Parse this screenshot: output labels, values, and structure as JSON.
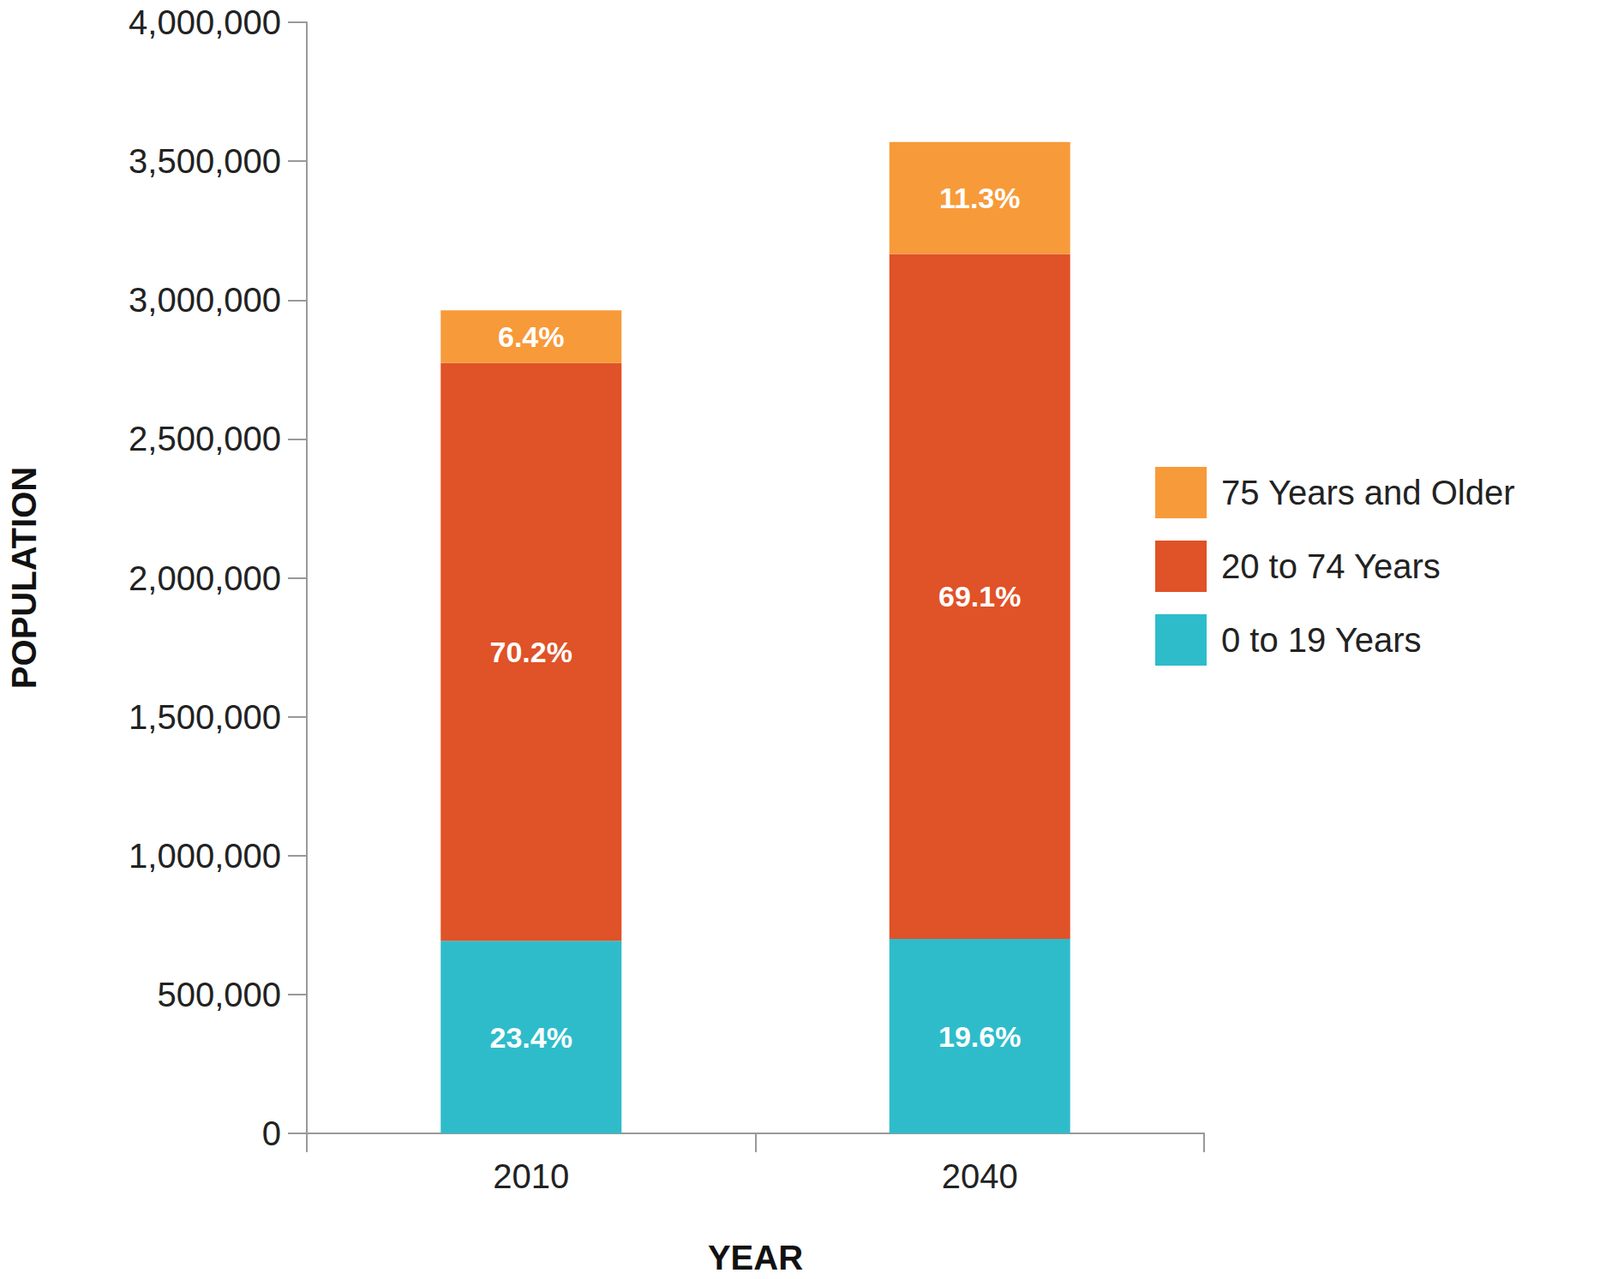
{
  "chart_data": {
    "type": "bar",
    "stacked": true,
    "grid": false,
    "legend": "right",
    "x_label": "YEAR",
    "y_label": "POPULATION",
    "categories": [
      "2010",
      "2040"
    ],
    "ylim": [
      0,
      4000000
    ],
    "yticks": [
      0,
      {
        "value": 500000,
        "label": "500,000"
      },
      {
        "value": 1000000,
        "label": "1,000,000"
      },
      {
        "value": 1500000,
        "label": "1,500,000"
      },
      {
        "value": 2000000,
        "label": "2,000,000"
      },
      {
        "value": 2500000,
        "label": "2,500,000"
      },
      {
        "value": 3000000,
        "label": "3,000,000"
      },
      {
        "value": 3500000,
        "label": "3,500,000"
      },
      {
        "value": 4000000,
        "label": "4,000,000"
      }
    ],
    "series": [
      {
        "name": "0 to 19 Years",
        "color": "#2ebccb",
        "values": [
          693000,
          700000
        ],
        "share_labels": [
          "23.4%",
          "19.6%"
        ]
      },
      {
        "name": "20 to 74 Years",
        "color": "#e05227",
        "values": [
          2080000,
          2466000
        ],
        "share_labels": [
          "70.2%",
          "69.1%"
        ]
      },
      {
        "name": "75 Years and Older",
        "color": "#f79a3a",
        "values": [
          190000,
          403000
        ],
        "share_labels": [
          "6.4%",
          "11.3%"
        ]
      }
    ]
  }
}
